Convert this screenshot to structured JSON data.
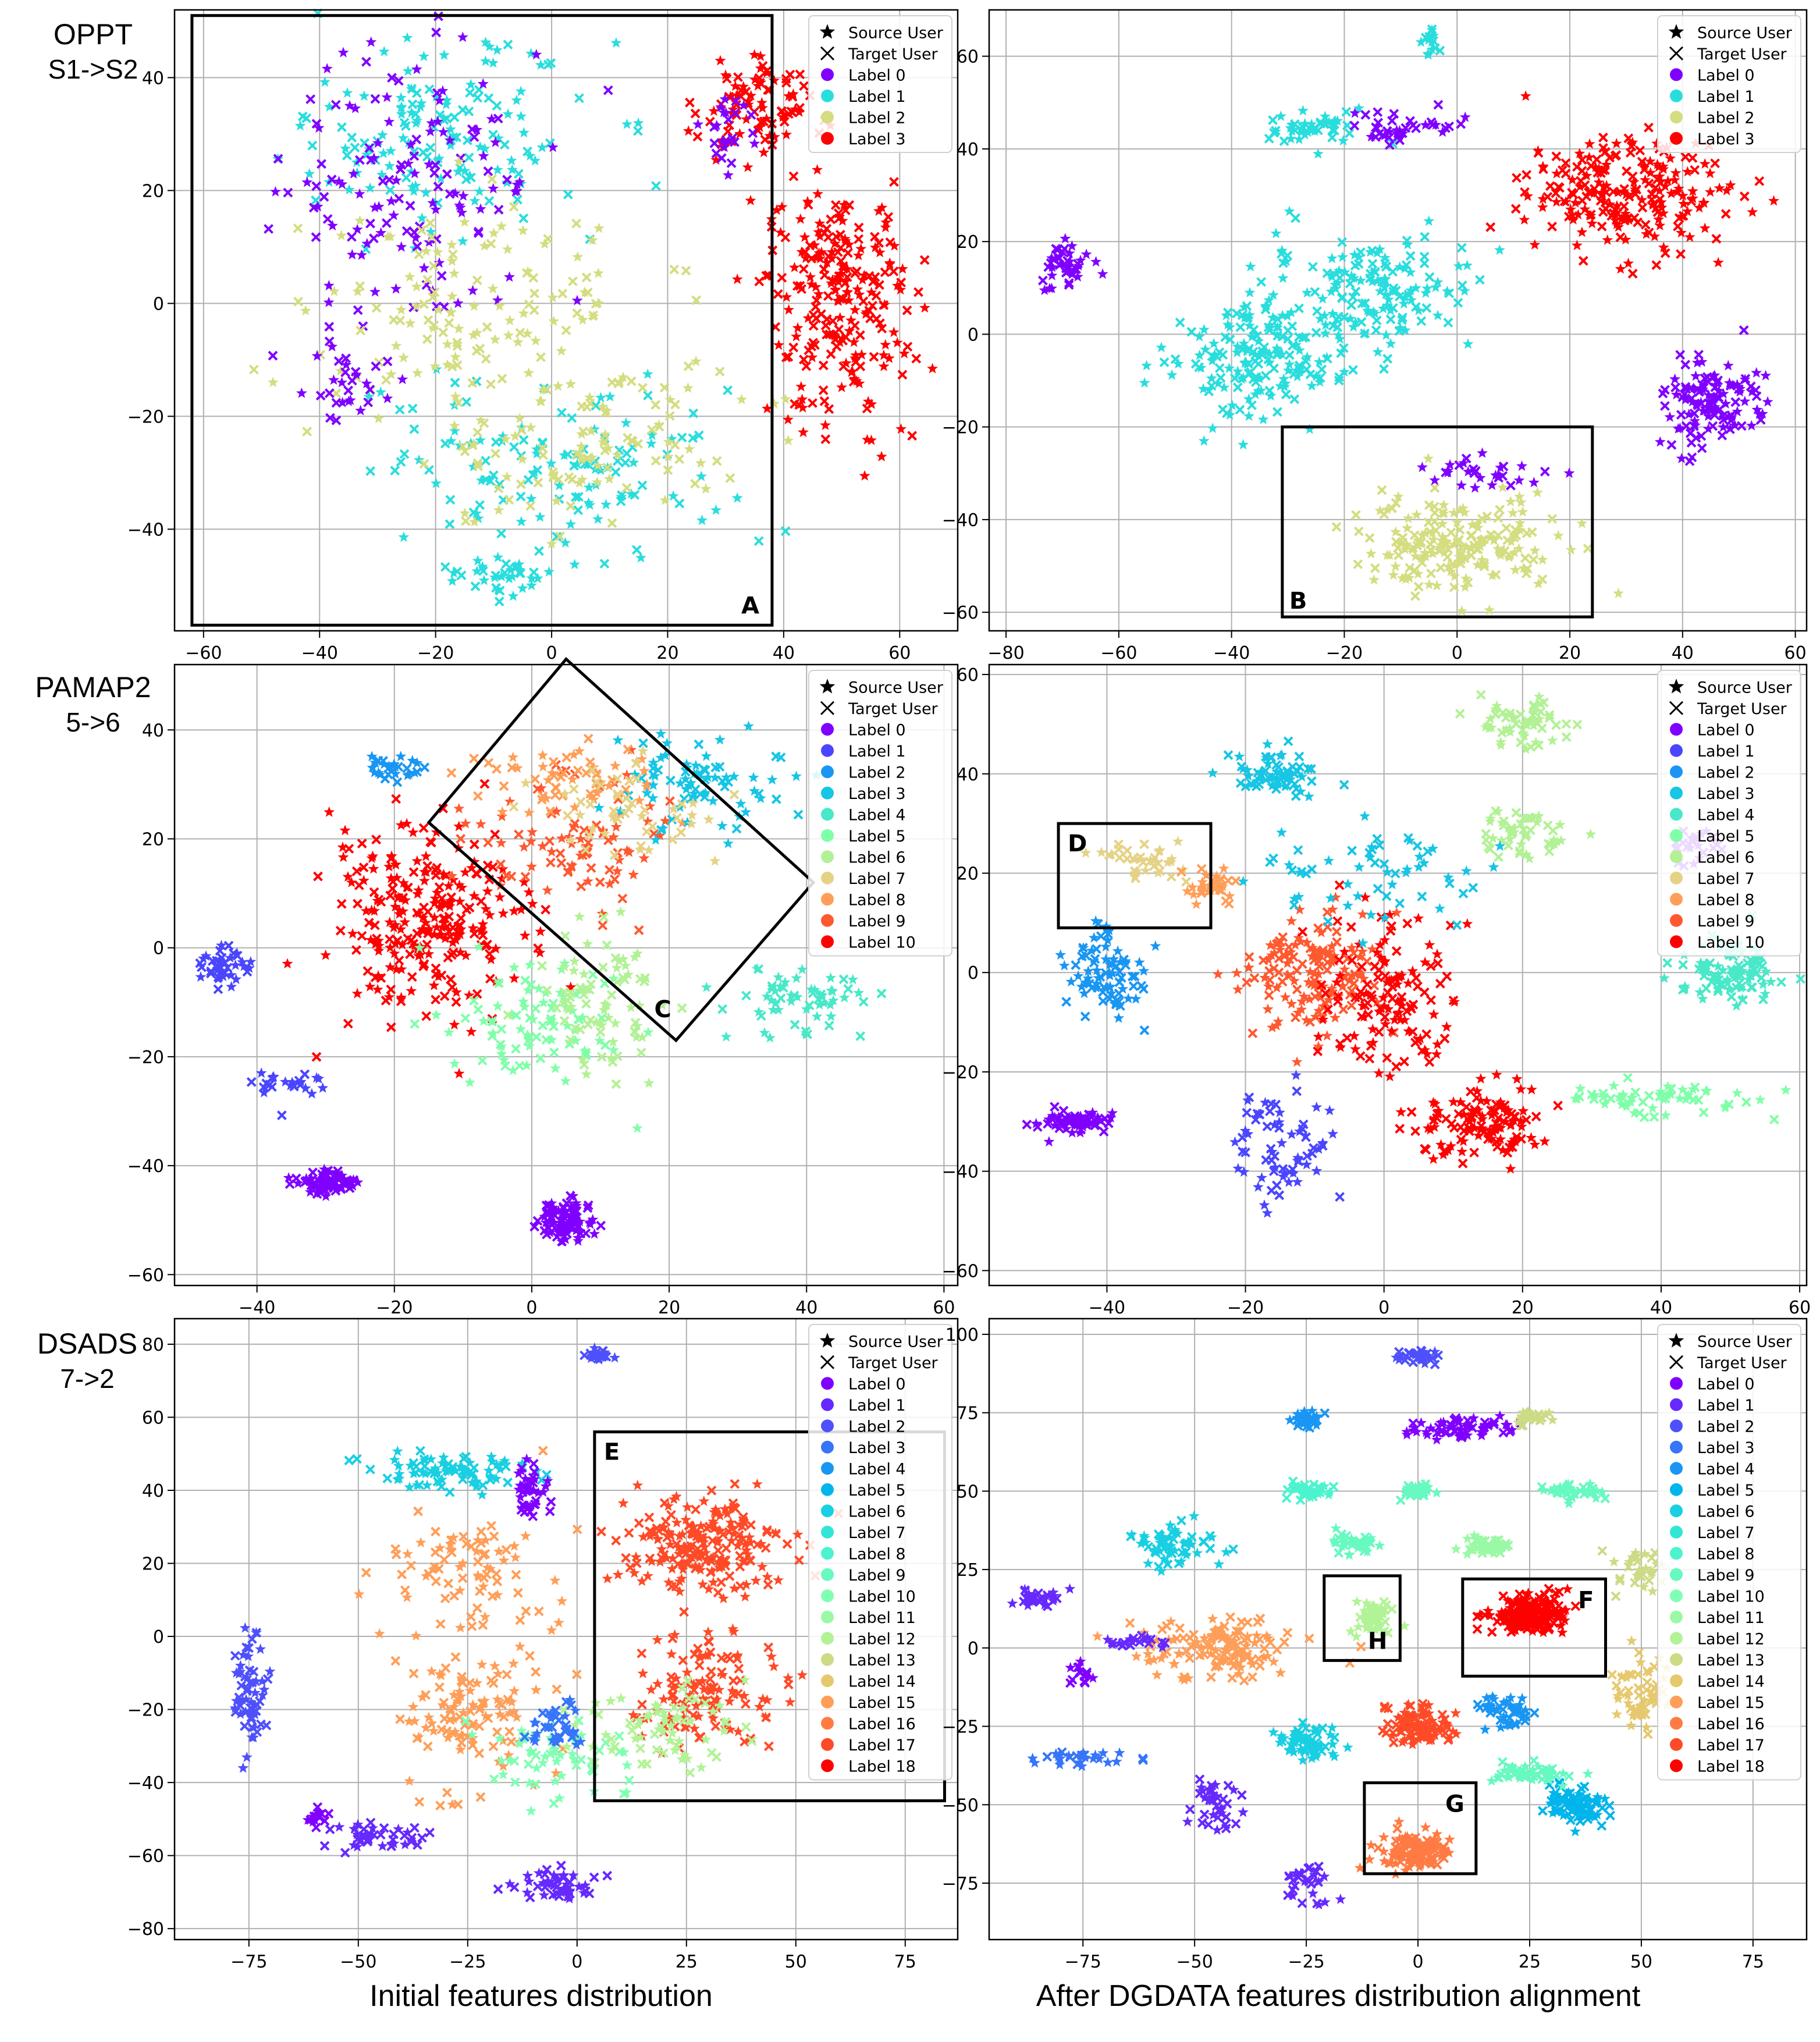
{
  "row_labels": [
    {
      "dataset": "OPPT",
      "task": "S1->S2"
    },
    {
      "dataset": "PAMAP2",
      "task": "5->6"
    },
    {
      "dataset": "DSADS",
      "task": "7->2"
    }
  ],
  "column_captions": [
    "Initial features distribution",
    "After DGDATA features distribution alignment"
  ],
  "legend_markers": {
    "source": "Source User",
    "target": "Target User"
  },
  "label_colors": {
    "n4": [
      "#8000ff",
      "#2adddd",
      "#d4dd80",
      "#ff0000"
    ],
    "n11": [
      "#8000ff",
      "#4a46fe",
      "#1996f3",
      "#17c5e4",
      "#48e8c8",
      "#7fffa8",
      "#b2f195",
      "#e5d285",
      "#ff9e58",
      "#ff5930",
      "#ff0000"
    ],
    "n19": [
      "#8000ff",
      "#6629fe",
      "#4e50fc",
      "#3675f9",
      "#1996f3",
      "#00b5eb",
      "#19cfe2",
      "#32e6d6",
      "#4cf3ce",
      "#66f9c0",
      "#80ffb4",
      "#9af9a4",
      "#b2f396",
      "#ccdb85",
      "#e6c96e",
      "#ff9e58",
      "#ff7b43",
      "#ff4a27",
      "#ff0000"
    ]
  },
  "chart_data": [
    {
      "type": "scatter",
      "panel": "OPPT initial",
      "xlim": [
        -65,
        70
      ],
      "ylim": [
        -58,
        52
      ],
      "xticks": [
        -60,
        -40,
        -20,
        0,
        20,
        40,
        60
      ],
      "yticks": [
        -40,
        -20,
        0,
        20,
        40
      ],
      "grid": true,
      "legend_position": "top-right",
      "legend_labels": [
        "Label 0",
        "Label 1",
        "Label 2",
        "Label 3"
      ],
      "clusters": [
        {
          "label": 1,
          "x": -20,
          "y": 30,
          "sx": 22,
          "sy": 14,
          "n": 150
        },
        {
          "label": 0,
          "x": -25,
          "y": 22,
          "sx": 18,
          "sy": 18,
          "n": 140
        },
        {
          "label": 2,
          "x": -15,
          "y": 0,
          "sx": 25,
          "sy": 15,
          "n": 130
        },
        {
          "label": 1,
          "x": 0,
          "y": -30,
          "sx": 25,
          "sy": 12,
          "n": 130
        },
        {
          "label": 2,
          "x": 5,
          "y": -25,
          "sx": 25,
          "sy": 12,
          "n": 120
        },
        {
          "label": 3,
          "x": 50,
          "y": 0,
          "sx": 10,
          "sy": 18,
          "n": 240
        },
        {
          "label": 3,
          "x": 35,
          "y": 35,
          "sx": 8,
          "sy": 8,
          "n": 90
        },
        {
          "label": 0,
          "x": 30,
          "y": 30,
          "sx": 5,
          "sy": 5,
          "n": 25
        },
        {
          "label": 1,
          "x": -10,
          "y": -48,
          "sx": 8,
          "sy": 3,
          "n": 40
        },
        {
          "label": 0,
          "x": -35,
          "y": -15,
          "sx": 6,
          "sy": 8,
          "n": 30
        }
      ],
      "box_annotations": [
        {
          "text": "A",
          "x1": -62,
          "y1": 51,
          "x2": 38,
          "y2": -57
        }
      ]
    },
    {
      "type": "scatter",
      "panel": "OPPT after DGDATA",
      "xlim": [
        -83,
        62
      ],
      "ylim": [
        -64,
        70
      ],
      "xticks": [
        -80,
        -60,
        -40,
        -20,
        0,
        20,
        40,
        60
      ],
      "yticks": [
        -60,
        -40,
        -20,
        0,
        20,
        40,
        60
      ],
      "grid": true,
      "legend_position": "top-right",
      "legend_labels": [
        "Label 0",
        "Label 1",
        "Label 2",
        "Label 3"
      ],
      "clusters": [
        {
          "label": 1,
          "x": -35,
          "y": -5,
          "sx": 14,
          "sy": 10,
          "n": 180
        },
        {
          "label": 1,
          "x": -15,
          "y": 10,
          "sx": 15,
          "sy": 10,
          "n": 150
        },
        {
          "label": 1,
          "x": -25,
          "y": 45,
          "sx": 8,
          "sy": 3,
          "n": 50
        },
        {
          "label": 0,
          "x": -10,
          "y": 45,
          "sx": 8,
          "sy": 3,
          "n": 40
        },
        {
          "label": 1,
          "x": -5,
          "y": 63,
          "sx": 1.5,
          "sy": 3,
          "n": 15
        },
        {
          "label": 0,
          "x": -70,
          "y": 15,
          "sx": 4,
          "sy": 5,
          "n": 40
        },
        {
          "label": 3,
          "x": 30,
          "y": 30,
          "sx": 15,
          "sy": 10,
          "n": 220
        },
        {
          "label": 0,
          "x": 45,
          "y": -15,
          "sx": 7,
          "sy": 8,
          "n": 120
        },
        {
          "label": 2,
          "x": 0,
          "y": -45,
          "sx": 15,
          "sy": 8,
          "n": 190
        },
        {
          "label": 0,
          "x": 5,
          "y": -30,
          "sx": 12,
          "sy": 3,
          "n": 30
        }
      ],
      "box_annotations": [
        {
          "text": "B",
          "x1": -31,
          "y1": -20,
          "x2": 24,
          "y2": -61
        }
      ]
    },
    {
      "type": "scatter",
      "panel": "PAMAP2 initial",
      "xlim": [
        -52,
        62
      ],
      "ylim": [
        -62,
        52
      ],
      "xticks": [
        -40,
        -20,
        0,
        20,
        40,
        60
      ],
      "yticks": [
        -60,
        -40,
        -20,
        0,
        20,
        40
      ],
      "grid": true,
      "legend_position": "top-right",
      "legend_labels": [
        "Label 0",
        "Label 1",
        "Label 2",
        "Label 3",
        "Label 4",
        "Label 5",
        "Label 6",
        "Label 7",
        "Label 8",
        "Label 9",
        "Label 10"
      ],
      "clusters": [
        {
          "label": 10,
          "x": -15,
          "y": 5,
          "sx": 12,
          "sy": 15,
          "n": 260
        },
        {
          "label": 9,
          "x": 5,
          "y": 20,
          "sx": 12,
          "sy": 10,
          "n": 90
        },
        {
          "label": 8,
          "x": 5,
          "y": 30,
          "sx": 12,
          "sy": 6,
          "n": 60
        },
        {
          "label": 5,
          "x": 0,
          "y": -15,
          "sx": 10,
          "sy": 10,
          "n": 90
        },
        {
          "label": 6,
          "x": 10,
          "y": -10,
          "sx": 8,
          "sy": 10,
          "n": 80
        },
        {
          "label": 3,
          "x": 25,
          "y": 30,
          "sx": 10,
          "sy": 8,
          "n": 80
        },
        {
          "label": 4,
          "x": 40,
          "y": -10,
          "sx": 10,
          "sy": 6,
          "n": 60
        },
        {
          "label": 0,
          "x": 5,
          "y": -50,
          "sx": 3,
          "sy": 3,
          "n": 90
        },
        {
          "label": 0,
          "x": -30,
          "y": -43,
          "sx": 4,
          "sy": 2,
          "n": 70
        },
        {
          "label": 1,
          "x": -45,
          "y": -3,
          "sx": 3,
          "sy": 3,
          "n": 40
        },
        {
          "label": 2,
          "x": -20,
          "y": 33,
          "sx": 4,
          "sy": 2,
          "n": 30
        },
        {
          "label": 7,
          "x": 15,
          "y": 25,
          "sx": 10,
          "sy": 8,
          "n": 50
        },
        {
          "label": 1,
          "x": -35,
          "y": -25,
          "sx": 4,
          "sy": 2,
          "n": 25
        }
      ],
      "box_annotations": [
        {
          "text": "C",
          "x1": -15,
          "y1": 23,
          "x2": 41,
          "y2": 12
        }
      ]
    },
    {
      "type": "scatter",
      "panel": "PAMAP2 after DGDATA",
      "xlim": [
        -57,
        61
      ],
      "ylim": [
        -63,
        62
      ],
      "xticks": [
        -40,
        -20,
        0,
        20,
        40,
        60
      ],
      "yticks": [
        -60,
        -40,
        -20,
        0,
        20,
        40,
        60
      ],
      "grid": true,
      "legend_position": "top-right",
      "legend_labels": [
        "Label 0",
        "Label 1",
        "Label 2",
        "Label 3",
        "Label 4",
        "Label 5",
        "Label 6",
        "Label 7",
        "Label 8",
        "Label 9",
        "Label 10"
      ],
      "clusters": [
        {
          "label": 9,
          "x": -10,
          "y": 0,
          "sx": 8,
          "sy": 10,
          "n": 150
        },
        {
          "label": 10,
          "x": 0,
          "y": -5,
          "sx": 8,
          "sy": 12,
          "n": 130
        },
        {
          "label": 10,
          "x": 15,
          "y": -30,
          "sx": 8,
          "sy": 6,
          "n": 120
        },
        {
          "label": 3,
          "x": -15,
          "y": 40,
          "sx": 6,
          "sy": 4,
          "n": 70
        },
        {
          "label": 6,
          "x": 20,
          "y": 50,
          "sx": 5,
          "sy": 4,
          "n": 60
        },
        {
          "label": 6,
          "x": 20,
          "y": 28,
          "sx": 6,
          "sy": 4,
          "n": 50
        },
        {
          "label": 4,
          "x": 50,
          "y": 0,
          "sx": 6,
          "sy": 5,
          "n": 100
        },
        {
          "label": 5,
          "x": 40,
          "y": -25,
          "sx": 12,
          "sy": 3,
          "n": 60
        },
        {
          "label": 0,
          "x": -45,
          "y": -30,
          "sx": 5,
          "sy": 2,
          "n": 60
        },
        {
          "label": 1,
          "x": -15,
          "y": -35,
          "sx": 6,
          "sy": 10,
          "n": 70
        },
        {
          "label": 2,
          "x": -40,
          "y": 0,
          "sx": 5,
          "sy": 8,
          "n": 80
        },
        {
          "label": 7,
          "x": -35,
          "y": 22,
          "sx": 6,
          "sy": 3,
          "n": 40
        },
        {
          "label": 3,
          "x": 0,
          "y": 20,
          "sx": 15,
          "sy": 8,
          "n": 60
        },
        {
          "label": 8,
          "x": -25,
          "y": 18,
          "sx": 3,
          "sy": 3,
          "n": 30
        },
        {
          "label": 0,
          "x": 45,
          "y": 25,
          "sx": 3,
          "sy": 3,
          "n": 25
        }
      ],
      "box_annotations": [
        {
          "text": "D",
          "x1": -47,
          "y1": 30,
          "x2": -25,
          "y2": 9
        }
      ]
    },
    {
      "type": "scatter",
      "panel": "DSADS initial",
      "xlim": [
        -92,
        87
      ],
      "ylim": [
        -83,
        87
      ],
      "xticks": [
        -75,
        -50,
        -25,
        0,
        25,
        50,
        75
      ],
      "yticks": [
        -80,
        -60,
        -40,
        -20,
        0,
        20,
        40,
        60,
        80
      ],
      "grid": true,
      "legend_position": "top-right",
      "legend_labels": [
        "Label 0",
        "Label 1",
        "Label 2",
        "Label 3",
        "Label 4",
        "Label 5",
        "Label 6",
        "Label 7",
        "Label 8",
        "Label 9",
        "Label 10",
        "Label 11",
        "Label 12",
        "Label 13",
        "Label 14",
        "Label 15",
        "Label 16",
        "Label 17",
        "Label 18"
      ],
      "clusters": [
        {
          "label": 17,
          "x": 30,
          "y": 25,
          "sx": 15,
          "sy": 12,
          "n": 200
        },
        {
          "label": 17,
          "x": 30,
          "y": -15,
          "sx": 12,
          "sy": 12,
          "n": 120
        },
        {
          "label": 15,
          "x": -25,
          "y": -20,
          "sx": 15,
          "sy": 18,
          "n": 120
        },
        {
          "label": 15,
          "x": -25,
          "y": 20,
          "sx": 15,
          "sy": 12,
          "n": 80
        },
        {
          "label": 6,
          "x": -30,
          "y": 45,
          "sx": 15,
          "sy": 5,
          "n": 80
        },
        {
          "label": 10,
          "x": -5,
          "y": -35,
          "sx": 15,
          "sy": 10,
          "n": 60
        },
        {
          "label": 12,
          "x": 20,
          "y": -25,
          "sx": 15,
          "sy": 10,
          "n": 70
        },
        {
          "label": 2,
          "x": -75,
          "y": -15,
          "sx": 3,
          "sy": 15,
          "n": 60
        },
        {
          "label": 1,
          "x": -45,
          "y": -55,
          "sx": 10,
          "sy": 3,
          "n": 40
        },
        {
          "label": 1,
          "x": -5,
          "y": -68,
          "sx": 8,
          "sy": 3,
          "n": 50
        },
        {
          "label": 0,
          "x": -10,
          "y": 40,
          "sx": 3,
          "sy": 6,
          "n": 40
        },
        {
          "label": 2,
          "x": 5,
          "y": 77,
          "sx": 3,
          "sy": 1.5,
          "n": 20
        },
        {
          "label": 0,
          "x": -60,
          "y": -50,
          "sx": 2,
          "sy": 3,
          "n": 15
        },
        {
          "label": 3,
          "x": -5,
          "y": -25,
          "sx": 5,
          "sy": 5,
          "n": 40
        }
      ],
      "box_annotations": [
        {
          "text": "E",
          "x1": 4,
          "y1": 56,
          "x2": 84,
          "y2": -45
        }
      ]
    },
    {
      "type": "scatter",
      "panel": "DSADS after DGDATA",
      "xlim": [
        -96,
        87
      ],
      "ylim": [
        -93,
        105
      ],
      "xticks": [
        -75,
        -50,
        -25,
        0,
        25,
        50,
        75
      ],
      "yticks": [
        -75,
        -50,
        -25,
        0,
        25,
        50,
        75,
        100
      ],
      "grid": true,
      "legend_position": "top-right",
      "legend_labels": [
        "Label 0",
        "Label 1",
        "Label 2",
        "Label 3",
        "Label 4",
        "Label 5",
        "Label 6",
        "Label 7",
        "Label 8",
        "Label 9",
        "Label 10",
        "Label 11",
        "Label 12",
        "Label 13",
        "Label 14",
        "Label 15",
        "Label 16",
        "Label 17",
        "Label 18"
      ],
      "clusters": [
        {
          "label": 2,
          "x": 0,
          "y": 93,
          "sx": 4,
          "sy": 2,
          "n": 30
        },
        {
          "label": 0,
          "x": 10,
          "y": 70,
          "sx": 10,
          "sy": 3,
          "n": 60
        },
        {
          "label": 4,
          "x": -25,
          "y": 73,
          "sx": 3,
          "sy": 2,
          "n": 30
        },
        {
          "label": 13,
          "x": 25,
          "y": 73,
          "sx": 3,
          "sy": 2,
          "n": 30
        },
        {
          "label": 8,
          "x": -25,
          "y": 50,
          "sx": 5,
          "sy": 2,
          "n": 40
        },
        {
          "label": 9,
          "x": 0,
          "y": 50,
          "sx": 4,
          "sy": 2,
          "n": 40
        },
        {
          "label": 9,
          "x": 35,
          "y": 50,
          "sx": 6,
          "sy": 2,
          "n": 40
        },
        {
          "label": 6,
          "x": -55,
          "y": 33,
          "sx": 8,
          "sy": 6,
          "n": 60
        },
        {
          "label": 9,
          "x": -15,
          "y": 33,
          "sx": 5,
          "sy": 3,
          "n": 40
        },
        {
          "label": 11,
          "x": 15,
          "y": 33,
          "sx": 5,
          "sy": 3,
          "n": 40
        },
        {
          "label": 18,
          "x": 25,
          "y": 10,
          "sx": 7,
          "sy": 5,
          "n": 200
        },
        {
          "label": 12,
          "x": -10,
          "y": 10,
          "sx": 4,
          "sy": 4,
          "n": 50
        },
        {
          "label": 15,
          "x": -45,
          "y": 0,
          "sx": 15,
          "sy": 8,
          "n": 130
        },
        {
          "label": 17,
          "x": 0,
          "y": -25,
          "sx": 6,
          "sy": 5,
          "n": 100
        },
        {
          "label": 16,
          "x": 0,
          "y": -65,
          "sx": 7,
          "sy": 5,
          "n": 120
        },
        {
          "label": 6,
          "x": -25,
          "y": -30,
          "sx": 6,
          "sy": 5,
          "n": 60
        },
        {
          "label": 4,
          "x": 20,
          "y": -20,
          "sx": 6,
          "sy": 5,
          "n": 50
        },
        {
          "label": 5,
          "x": 35,
          "y": -50,
          "sx": 5,
          "sy": 5,
          "n": 80
        },
        {
          "label": 9,
          "x": 25,
          "y": -40,
          "sx": 8,
          "sy": 3,
          "n": 50
        },
        {
          "label": 14,
          "x": 50,
          "y": -15,
          "sx": 5,
          "sy": 10,
          "n": 60
        },
        {
          "label": 1,
          "x": -45,
          "y": -50,
          "sx": 4,
          "sy": 8,
          "n": 40
        },
        {
          "label": 1,
          "x": -25,
          "y": -75,
          "sx": 4,
          "sy": 5,
          "n": 30
        },
        {
          "label": 1,
          "x": -85,
          "y": 15,
          "sx": 5,
          "sy": 3,
          "n": 30
        },
        {
          "label": 3,
          "x": -75,
          "y": -35,
          "sx": 10,
          "sy": 2,
          "n": 30
        },
        {
          "label": 0,
          "x": -75,
          "y": -10,
          "sx": 2,
          "sy": 4,
          "n": 15
        },
        {
          "label": 1,
          "x": -65,
          "y": 2,
          "sx": 5,
          "sy": 2,
          "n": 20
        },
        {
          "label": 13,
          "x": 50,
          "y": 25,
          "sx": 5,
          "sy": 5,
          "n": 30
        }
      ],
      "box_annotations": [
        {
          "text": "H",
          "x1": -21,
          "y1": 23,
          "x2": -4,
          "y2": -4
        },
        {
          "text": "F",
          "x1": 10,
          "y1": 22,
          "x2": 42,
          "y2": -9
        },
        {
          "text": "G",
          "x1": -12,
          "y1": -43,
          "x2": 13,
          "y2": -72
        }
      ]
    }
  ]
}
